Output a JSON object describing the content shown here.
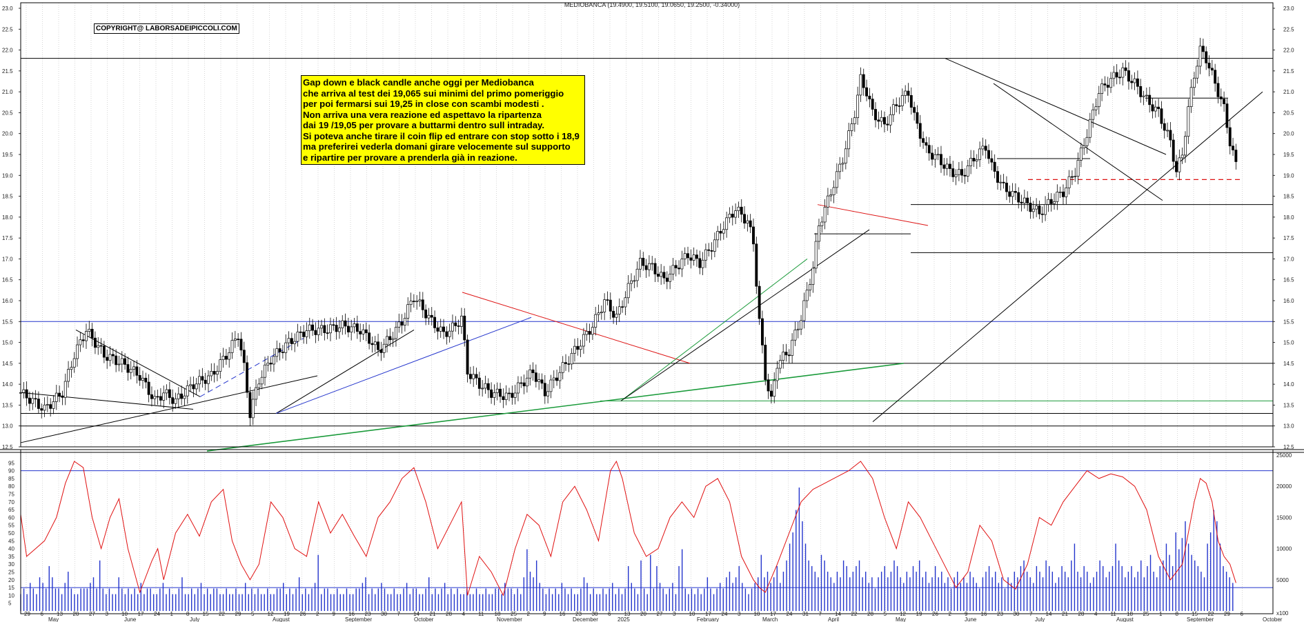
{
  "title": "MEDIOBANCA (19.4900, 19.5100, 19.0650, 19.2500, -0.34000)",
  "copyright": "COPYRIGHT@ LABORSADEIPICCOLI.COM",
  "note_lines": [
    "Gap down e black candle anche oggi per Mediobanca",
    "che arriva al test dei 19,065 sui minimi del primo pomeriggio",
    "per poi fermarsi sui 19,25 in close con scambi modesti .",
    "Non arriva una vera reazione ed aspettavo la ripartenza",
    "dai 19 /19,05 per provare a buttarmi dentro sull intraday.",
    "Si poteva anche tirare il coin flip ed entrare con stop sotto i 18,9",
    "ma preferirei vederla domani girare velocemente sul supporto",
    "e ripartire per provare a prenderla già in reazione."
  ],
  "chart_data": {
    "type": "candlestick",
    "price_axis": {
      "ylim": [
        12.5,
        23.0
      ],
      "ticks": [
        "12.5",
        "13.0",
        "13.5",
        "14.0",
        "14.5",
        "15.0",
        "15.5",
        "16.0",
        "16.5",
        "17.0",
        "17.5",
        "18.0",
        "18.5",
        "19.0",
        "19.5",
        "20.0",
        "20.5",
        "21.0",
        "21.5",
        "22.0",
        "22.5",
        "23.0"
      ]
    },
    "oscillator_axis": {
      "ylim": [
        0,
        100
      ],
      "ticks": [
        "5",
        "10",
        "15",
        "20",
        "25",
        "30",
        "35",
        "40",
        "45",
        "50",
        "55",
        "60",
        "65",
        "70",
        "75",
        "80",
        "85",
        "90",
        "95"
      ],
      "levels": [
        15,
        90
      ]
    },
    "volume_axis": {
      "ylim": [
        0,
        25000
      ],
      "ticks": [
        "5000",
        "10000",
        "15000",
        "20000",
        "25000"
      ]
    },
    "volume_unit": "x100",
    "day_ticks": [
      "29",
      "6",
      "13",
      "20",
      "27",
      "3",
      "10",
      "17",
      "24",
      "1",
      "8",
      "15",
      "22",
      "29",
      "5",
      "12",
      "19",
      "26",
      "2",
      "9",
      "16",
      "23",
      "30",
      "7",
      "14",
      "21",
      "28",
      "4",
      "11",
      "18",
      "25",
      "2",
      "9",
      "16",
      "23",
      "30",
      "6",
      "13",
      "20",
      "27",
      "3",
      "10",
      "17",
      "24",
      "3",
      "10",
      "17",
      "24",
      "31",
      "7",
      "14",
      "22",
      "28",
      "5",
      "12",
      "19",
      "26",
      "2",
      "9",
      "16",
      "23",
      "30",
      "7",
      "14",
      "21",
      "28",
      "4",
      "11",
      "18",
      "25",
      "1",
      "8",
      "15",
      "22",
      "29",
      "6"
    ],
    "month_labels": [
      "May",
      "June",
      "July",
      "August",
      "September",
      "October",
      "November",
      "December",
      "2025",
      "February",
      "March",
      "April",
      "May",
      "June",
      "July",
      "August",
      "September",
      "October"
    ],
    "last_bar": {
      "open": 19.49,
      "high": 19.51,
      "low": 19.065,
      "close": 19.25,
      "change": -0.34
    },
    "price_path": [
      [
        0,
        13.8
      ],
      [
        8,
        13.4
      ],
      [
        14,
        13.8
      ],
      [
        18,
        14.7
      ],
      [
        22,
        15.3
      ],
      [
        28,
        14.7
      ],
      [
        34,
        14.5
      ],
      [
        40,
        14.2
      ],
      [
        45,
        13.6
      ],
      [
        48,
        13.8
      ],
      [
        52,
        13.6
      ],
      [
        58,
        14.0
      ],
      [
        64,
        14.2
      ],
      [
        70,
        14.8
      ],
      [
        73,
        15.2
      ],
      [
        75,
        14.4
      ],
      [
        77,
        13.3
      ],
      [
        80,
        14.1
      ],
      [
        84,
        14.6
      ],
      [
        90,
        15.0
      ],
      [
        96,
        15.3
      ],
      [
        102,
        15.3
      ],
      [
        108,
        15.4
      ],
      [
        114,
        15.3
      ],
      [
        118,
        15.0
      ],
      [
        120,
        14.8
      ],
      [
        124,
        15.1
      ],
      [
        128,
        15.5
      ],
      [
        132,
        16.1
      ],
      [
        136,
        15.7
      ],
      [
        138,
        15.5
      ],
      [
        142,
        15.2
      ],
      [
        146,
        15.4
      ],
      [
        148,
        15.6
      ],
      [
        150,
        14.3
      ],
      [
        154,
        14.0
      ],
      [
        158,
        13.8
      ],
      [
        164,
        13.7
      ],
      [
        168,
        14.0
      ],
      [
        172,
        14.3
      ],
      [
        176,
        13.8
      ],
      [
        180,
        14.2
      ],
      [
        184,
        14.6
      ],
      [
        188,
        15.0
      ],
      [
        192,
        15.4
      ],
      [
        196,
        16.0
      ],
      [
        200,
        15.6
      ],
      [
        204,
        16.3
      ],
      [
        208,
        16.9
      ],
      [
        212,
        16.8
      ],
      [
        216,
        16.5
      ],
      [
        220,
        16.8
      ],
      [
        224,
        17.1
      ],
      [
        228,
        16.9
      ],
      [
        232,
        17.3
      ],
      [
        236,
        17.8
      ],
      [
        240,
        18.2
      ],
      [
        244,
        17.9
      ],
      [
        246,
        17.4
      ],
      [
        248,
        15.5
      ],
      [
        250,
        14.2
      ],
      [
        252,
        13.6
      ],
      [
        254,
        14.5
      ],
      [
        258,
        14.8
      ],
      [
        262,
        15.6
      ],
      [
        266,
        16.8
      ],
      [
        268,
        17.8
      ],
      [
        272,
        18.6
      ],
      [
        276,
        19.4
      ],
      [
        280,
        20.5
      ],
      [
        282,
        21.3
      ],
      [
        284,
        21.0
      ],
      [
        286,
        20.5
      ],
      [
        290,
        20.2
      ],
      [
        294,
        20.7
      ],
      [
        298,
        21.0
      ],
      [
        300,
        20.4
      ],
      [
        304,
        19.6
      ],
      [
        308,
        19.4
      ],
      [
        312,
        19.1
      ],
      [
        316,
        19.0
      ],
      [
        320,
        19.4
      ],
      [
        324,
        19.7
      ],
      [
        326,
        19.2
      ],
      [
        330,
        18.7
      ],
      [
        334,
        18.5
      ],
      [
        338,
        18.3
      ],
      [
        342,
        18.1
      ],
      [
        346,
        18.4
      ],
      [
        350,
        18.6
      ],
      [
        354,
        19.1
      ],
      [
        358,
        20.0
      ],
      [
        362,
        21.0
      ],
      [
        366,
        21.3
      ],
      [
        370,
        21.5
      ],
      [
        374,
        21.2
      ],
      [
        378,
        20.8
      ],
      [
        382,
        20.5
      ],
      [
        386,
        19.8
      ],
      [
        388,
        19.1
      ],
      [
        390,
        19.5
      ],
      [
        392,
        20.6
      ],
      [
        394,
        21.4
      ],
      [
        396,
        22.0
      ],
      [
        398,
        21.8
      ],
      [
        400,
        21.4
      ],
      [
        402,
        21.0
      ],
      [
        404,
        20.6
      ],
      [
        406,
        19.8
      ],
      [
        408,
        19.25
      ]
    ],
    "oscillator_path": [
      [
        0,
        62
      ],
      [
        2,
        35
      ],
      [
        5,
        40
      ],
      [
        8,
        45
      ],
      [
        12,
        60
      ],
      [
        15,
        82
      ],
      [
        18,
        96
      ],
      [
        21,
        92
      ],
      [
        24,
        60
      ],
      [
        27,
        40
      ],
      [
        30,
        60
      ],
      [
        33,
        72
      ],
      [
        36,
        40
      ],
      [
        40,
        12
      ],
      [
        44,
        32
      ],
      [
        46,
        40
      ],
      [
        48,
        20
      ],
      [
        52,
        50
      ],
      [
        56,
        62
      ],
      [
        60,
        48
      ],
      [
        64,
        70
      ],
      [
        68,
        78
      ],
      [
        71,
        45
      ],
      [
        74,
        30
      ],
      [
        77,
        20
      ],
      [
        80,
        30
      ],
      [
        84,
        70
      ],
      [
        88,
        60
      ],
      [
        92,
        40
      ],
      [
        96,
        35
      ],
      [
        100,
        70
      ],
      [
        104,
        50
      ],
      [
        108,
        62
      ],
      [
        112,
        48
      ],
      [
        116,
        35
      ],
      [
        120,
        60
      ],
      [
        124,
        70
      ],
      [
        128,
        85
      ],
      [
        132,
        92
      ],
      [
        136,
        70
      ],
      [
        140,
        40
      ],
      [
        144,
        55
      ],
      [
        148,
        70
      ],
      [
        150,
        10
      ],
      [
        154,
        35
      ],
      [
        158,
        25
      ],
      [
        162,
        10
      ],
      [
        166,
        40
      ],
      [
        170,
        62
      ],
      [
        174,
        55
      ],
      [
        178,
        35
      ],
      [
        182,
        70
      ],
      [
        186,
        80
      ],
      [
        190,
        65
      ],
      [
        194,
        45
      ],
      [
        198,
        90
      ],
      [
        200,
        96
      ],
      [
        202,
        85
      ],
      [
        206,
        50
      ],
      [
        210,
        35
      ],
      [
        214,
        40
      ],
      [
        218,
        60
      ],
      [
        222,
        70
      ],
      [
        226,
        60
      ],
      [
        230,
        80
      ],
      [
        234,
        85
      ],
      [
        238,
        70
      ],
      [
        242,
        35
      ],
      [
        246,
        20
      ],
      [
        248,
        15
      ],
      [
        250,
        12
      ],
      [
        254,
        30
      ],
      [
        258,
        50
      ],
      [
        262,
        70
      ],
      [
        266,
        78
      ],
      [
        270,
        82
      ],
      [
        274,
        86
      ],
      [
        278,
        90
      ],
      [
        282,
        96
      ],
      [
        286,
        85
      ],
      [
        290,
        60
      ],
      [
        294,
        40
      ],
      [
        298,
        70
      ],
      [
        302,
        60
      ],
      [
        306,
        45
      ],
      [
        310,
        30
      ],
      [
        314,
        15
      ],
      [
        318,
        25
      ],
      [
        322,
        55
      ],
      [
        326,
        45
      ],
      [
        330,
        20
      ],
      [
        334,
        14
      ],
      [
        338,
        30
      ],
      [
        342,
        60
      ],
      [
        346,
        55
      ],
      [
        350,
        70
      ],
      [
        354,
        80
      ],
      [
        358,
        90
      ],
      [
        362,
        85
      ],
      [
        366,
        88
      ],
      [
        370,
        86
      ],
      [
        374,
        80
      ],
      [
        378,
        65
      ],
      [
        382,
        35
      ],
      [
        386,
        20
      ],
      [
        390,
        30
      ],
      [
        394,
        70
      ],
      [
        396,
        85
      ],
      [
        398,
        82
      ],
      [
        400,
        70
      ],
      [
        402,
        45
      ],
      [
        404,
        35
      ],
      [
        406,
        30
      ],
      [
        408,
        18
      ]
    ],
    "volume_bars": [
      3,
      4,
      3,
      5,
      4,
      3,
      6,
      5,
      4,
      8,
      6,
      4,
      4,
      3,
      5,
      7,
      4,
      3,
      3,
      4,
      4,
      4,
      5,
      6,
      4,
      9,
      4,
      3,
      4,
      3,
      3,
      6,
      4,
      3,
      4,
      3,
      4,
      3,
      5,
      3,
      4,
      4,
      3,
      3,
      4,
      5,
      3,
      4,
      3,
      3,
      4,
      6,
      3,
      3,
      4,
      3,
      4,
      5,
      3,
      4,
      3,
      4,
      4,
      3,
      3,
      4,
      3,
      3,
      4,
      3,
      3,
      5,
      3,
      4,
      3,
      4,
      3,
      3,
      4,
      3,
      3,
      4,
      4,
      5,
      3,
      4,
      3,
      4,
      6,
      3,
      4,
      3,
      4,
      5,
      10,
      3,
      4,
      4,
      3,
      3,
      4,
      3,
      3,
      4,
      3,
      3,
      4,
      4,
      5,
      6,
      3,
      4,
      3,
      4,
      5,
      4,
      3,
      3,
      4,
      3,
      3,
      4,
      5,
      3,
      4,
      4,
      3,
      3,
      4,
      6,
      3,
      4,
      3,
      4,
      5,
      3,
      4,
      3,
      4,
      3,
      3,
      4,
      3,
      3,
      4,
      3,
      3,
      4,
      3,
      3,
      4,
      4,
      3,
      5,
      4,
      4,
      3,
      4,
      3,
      6,
      11,
      7,
      6,
      9,
      5,
      4,
      3,
      4,
      3,
      4,
      3,
      5,
      4,
      3,
      4,
      3,
      3,
      4,
      6,
      5,
      3,
      4,
      3,
      3,
      4,
      3,
      4,
      5,
      3,
      4,
      3,
      4,
      8,
      5,
      4,
      3,
      9,
      4,
      3,
      10,
      4,
      8,
      5,
      4,
      3,
      4,
      5,
      3,
      8,
      11,
      4,
      3,
      4,
      3,
      4,
      3,
      4,
      6,
      4,
      3,
      4,
      5,
      4,
      6,
      7,
      5,
      6,
      8,
      5,
      4,
      3,
      4,
      5,
      6,
      10,
      6,
      7,
      5,
      6,
      8,
      5,
      7,
      9,
      12,
      14,
      18,
      22,
      16,
      12,
      9,
      8,
      7,
      6,
      10,
      9,
      7,
      6,
      5,
      7,
      6,
      9,
      8,
      6,
      7,
      8,
      9,
      6,
      7,
      5,
      6,
      4,
      6,
      7,
      8,
      6,
      7,
      9,
      8,
      6,
      5,
      7,
      6,
      8,
      7,
      9,
      6,
      7,
      5,
      6,
      8,
      6,
      7,
      5,
      6,
      4,
      6,
      7,
      5,
      6,
      5,
      7,
      6,
      5,
      4,
      6,
      7,
      8,
      6,
      7,
      5,
      6,
      4,
      6,
      5,
      7,
      6,
      8,
      9,
      7,
      6,
      5,
      8,
      7,
      6,
      9,
      8,
      7,
      5,
      6,
      8,
      7,
      6,
      9,
      12,
      7,
      6,
      8,
      7,
      5,
      6,
      7,
      9,
      8,
      6,
      7,
      8,
      12,
      9,
      8,
      6,
      7,
      8,
      6,
      7,
      9,
      6,
      8,
      10,
      7,
      6,
      8,
      9,
      12,
      10,
      8,
      14,
      11,
      13,
      16,
      12,
      10,
      9,
      8,
      7,
      6,
      12,
      14,
      18,
      16,
      12,
      8,
      7,
      6,
      5
    ]
  }
}
